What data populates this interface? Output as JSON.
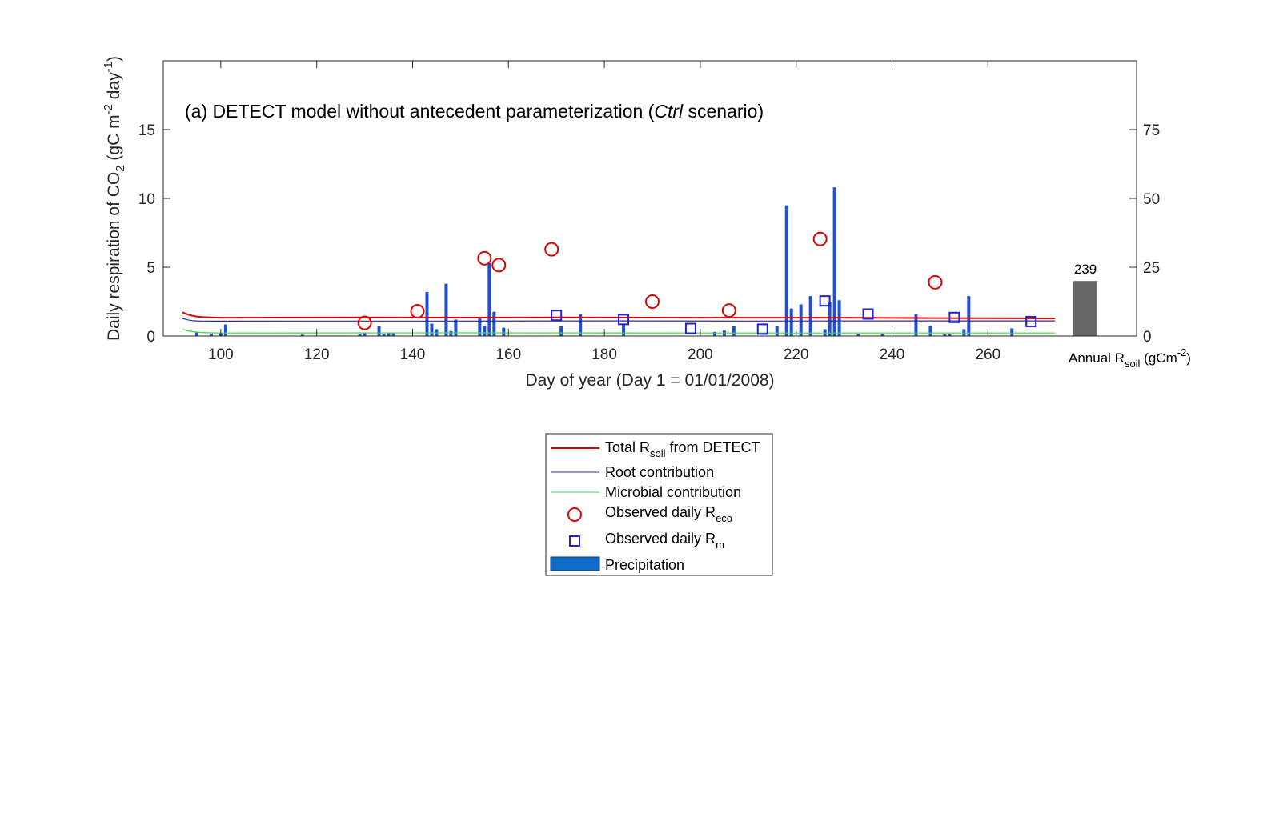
{
  "chart_data": {
    "type": "line",
    "title": {
      "prefix": "(a) DETECT model without antecedent parameterization (",
      "italic": "Ctrl",
      "suffix": " scenario)"
    },
    "xlabel": "Day of year (Day 1 = 01/01/2008)",
    "ylabel": {
      "prefix": "Daily respiration of CO",
      "sub": "2",
      "mid1": " (gC m",
      "sup1": "-2",
      "mid2": " day",
      "sup2": "-1",
      "suffix": ")"
    },
    "xlim": [
      88,
      291
    ],
    "ylim": [
      0,
      20
    ],
    "y2lim": [
      0,
      100
    ],
    "xticks": [
      100,
      120,
      140,
      160,
      180,
      200,
      220,
      240,
      260
    ],
    "yticks": [
      0,
      5,
      10,
      15
    ],
    "y2ticks": [
      0,
      25,
      50,
      75
    ],
    "grid": false,
    "series": [
      {
        "name": {
          "prefix": "Total R",
          "sub": "soil",
          "suffix": " from DETECT"
        },
        "kind": "line",
        "color": "#e00000",
        "x": [
          92,
          93,
          94,
          95,
          96,
          98,
          100,
          110,
          130,
          150,
          170,
          190,
          210,
          230,
          250,
          274
        ],
        "y": [
          1.72,
          1.58,
          1.48,
          1.42,
          1.38,
          1.35,
          1.33,
          1.34,
          1.35,
          1.34,
          1.35,
          1.34,
          1.33,
          1.33,
          1.3,
          1.28
        ]
      },
      {
        "name": {
          "prefix": "Root contribution",
          "sub": "",
          "suffix": ""
        },
        "kind": "line",
        "color": "#2b2b9a",
        "x": [
          92,
          93,
          94,
          95,
          96,
          98,
          100,
          120,
          150,
          180,
          210,
          240,
          274
        ],
        "y": [
          1.28,
          1.18,
          1.12,
          1.1,
          1.09,
          1.08,
          1.08,
          1.09,
          1.09,
          1.1,
          1.09,
          1.1,
          1.1
        ]
      },
      {
        "name": {
          "prefix": "Microbial contribution",
          "sub": "",
          "suffix": ""
        },
        "kind": "line",
        "color": "#33dd33",
        "x": [
          92,
          93,
          94,
          95,
          96,
          98,
          100,
          150,
          200,
          274
        ],
        "y": [
          0.48,
          0.38,
          0.32,
          0.28,
          0.25,
          0.23,
          0.22,
          0.23,
          0.22,
          0.22
        ]
      },
      {
        "name": {
          "prefix": "Observed daily R",
          "sub": "eco",
          "suffix": ""
        },
        "kind": "circle",
        "color": "#e00000",
        "x": [
          130,
          141,
          155,
          158,
          169,
          190,
          206,
          225,
          249
        ],
        "y": [
          0.95,
          1.8,
          5.65,
          5.15,
          6.3,
          2.5,
          1.85,
          7.05,
          3.9
        ]
      },
      {
        "name": {
          "prefix": "Observed daily R",
          "sub": "m",
          "suffix": ""
        },
        "kind": "square",
        "color": "#1f1fd6",
        "x": [
          170,
          184,
          198,
          213,
          226,
          235,
          253,
          269
        ],
        "y": [
          1.5,
          1.2,
          0.55,
          0.5,
          2.55,
          1.6,
          1.35,
          1.05
        ]
      }
    ],
    "precipitation": {
      "name": {
        "prefix": "Precipitation",
        "sub": "",
        "suffix": ""
      },
      "color": "#1f4fd6",
      "axis": "right",
      "x": [
        95,
        98,
        100,
        101,
        117,
        129,
        130,
        133,
        134,
        135,
        136,
        143,
        144,
        145,
        147,
        148,
        149,
        154,
        155,
        156,
        157,
        159,
        171,
        175,
        184,
        203,
        205,
        207,
        216,
        218,
        219,
        221,
        223,
        226,
        227,
        228,
        229,
        233,
        238,
        245,
        248,
        251,
        252,
        255,
        256,
        265
      ],
      "y": [
        1.5,
        0.8,
        1.2,
        4.2,
        0.5,
        0.8,
        1.0,
        3.5,
        0.8,
        1.2,
        1.0,
        16.0,
        4.5,
        2.5,
        19.0,
        1.8,
        6.0,
        7.0,
        3.8,
        26.5,
        8.8,
        3.0,
        3.5,
        8.0,
        4.5,
        1.5,
        2.0,
        3.5,
        3.5,
        47.5,
        10.0,
        11.5,
        14.5,
        2.5,
        12.5,
        54.0,
        13.0,
        0.8,
        0.8,
        8.0,
        3.8,
        0.6,
        0.6,
        2.5,
        14.5,
        2.8
      ]
    },
    "annual_bar": {
      "value": 239,
      "value_label": "239",
      "height_on_right_axis": 20,
      "color": "#666666",
      "label": {
        "prefix": "Annual R",
        "sub": "soil",
        "mid": " (gCm",
        "sup": "-2",
        "suffix": ")"
      }
    },
    "legend_placement": "below-center"
  }
}
